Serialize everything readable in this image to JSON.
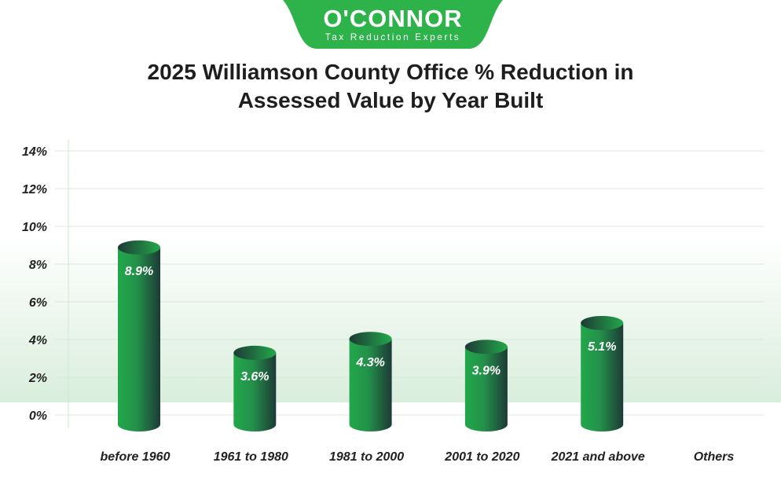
{
  "logo": {
    "name": "O'CONNOR",
    "tagline": "Tax Reduction Experts"
  },
  "chart_data": {
    "type": "bar",
    "title": "2025 Williamson County Office % Reduction in Assessed Value by Year Built",
    "title_lines": [
      "2025 Williamson County Office % Reduction in",
      "Assessed Value by Year Built"
    ],
    "categories": [
      "before 1960",
      "1961 to 1980",
      "1981 to 2000",
      "2001 to 2020",
      "2021 and above",
      "Others"
    ],
    "values": [
      8.9,
      3.6,
      4.3,
      3.9,
      5.1,
      null
    ],
    "data_labels": [
      "8.9%",
      "3.6%",
      "4.3%",
      "3.9%",
      "5.1%",
      ""
    ],
    "ylim": [
      0,
      14
    ],
    "yticks": [
      "0%",
      "2%",
      "4%",
      "6%",
      "8%",
      "10%",
      "12%",
      "14%"
    ],
    "grid": true,
    "xlabel": "",
    "ylabel": "",
    "colors": {
      "bar_light": "#22a84a",
      "bar_dark": "#1d3a36",
      "grid": "#d6ecd9",
      "brand": "#2db34a"
    }
  }
}
